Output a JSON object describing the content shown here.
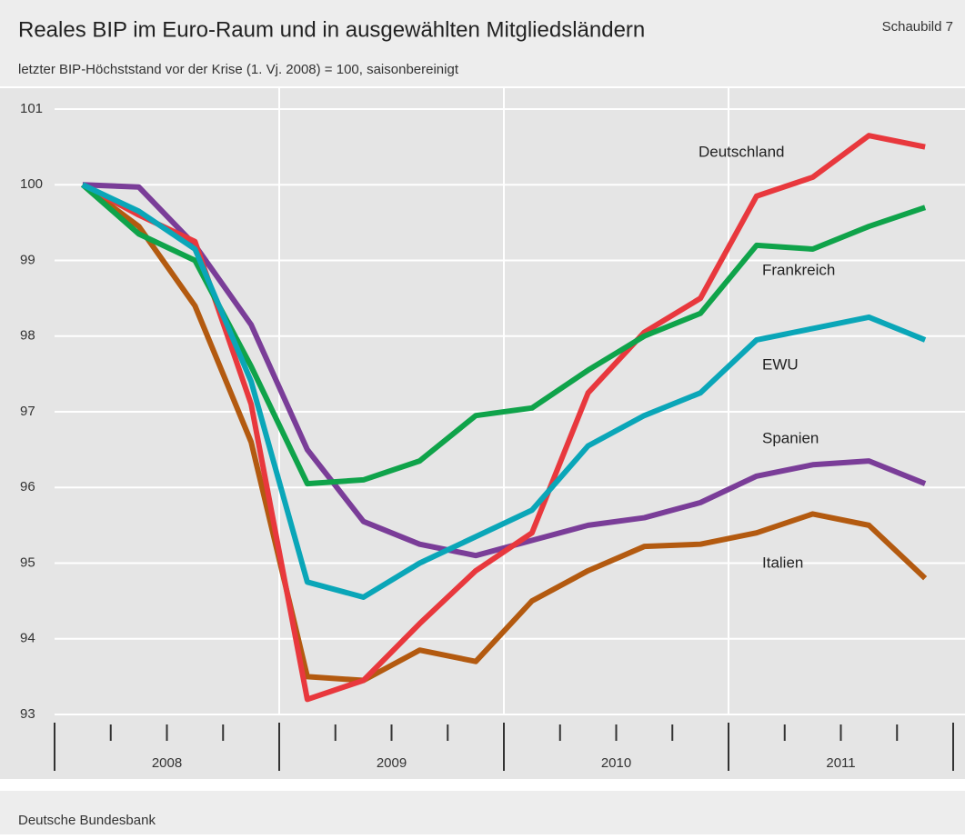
{
  "chart_data": {
    "type": "line",
    "title": "Reales BIP im Euro-Raum und in ausgewählten Mitgliedsländern",
    "figure_label": "Schaubild 7",
    "subtitle": "letzter BIP-Höchststand vor der Krise (1. Vj. 2008) = 100, saisonbereinigt",
    "source": "Deutsche Bundesbank",
    "categories": [
      null,
      null,
      null,
      null,
      null,
      null,
      null,
      null,
      null,
      null,
      null,
      null,
      null,
      null,
      null,
      null
    ],
    "years": [
      "2008",
      "2009",
      "2010",
      "2011"
    ],
    "ylim": [
      93,
      101
    ],
    "yticks": [
      93,
      94,
      95,
      96,
      97,
      98,
      99,
      100,
      101
    ],
    "grid": true,
    "series": [
      {
        "name": "Italien",
        "color": "#b35a10",
        "values": [
          100,
          99.45,
          98.4,
          96.6,
          93.5,
          93.45,
          93.85,
          93.7,
          94.5,
          94.9,
          95.22,
          95.25,
          95.4,
          95.65,
          95.5,
          94.8
        ]
      },
      {
        "name": "Spanien",
        "color": "#7a3d98",
        "values": [
          100,
          99.97,
          99.2,
          98.15,
          96.5,
          95.55,
          95.25,
          95.1,
          95.3,
          95.5,
          95.6,
          95.8,
          96.15,
          96.3,
          96.35,
          96.05
        ]
      },
      {
        "name": "Deutschland",
        "color": "#e8383d",
        "values": [
          100,
          99.6,
          99.25,
          97.1,
          93.2,
          93.45,
          94.2,
          94.9,
          95.4,
          97.25,
          98.05,
          98.5,
          99.85,
          100.1,
          100.65,
          100.5
        ]
      },
      {
        "name": "Frankreich",
        "color": "#0fa34a",
        "values": [
          100,
          99.35,
          99.0,
          97.6,
          96.05,
          96.1,
          96.35,
          96.95,
          97.05,
          97.55,
          98.0,
          98.3,
          99.2,
          99.15,
          99.45,
          99.7
        ]
      },
      {
        "name": "EWU",
        "color": "#0aa6b8",
        "values": [
          100,
          99.65,
          99.15,
          97.4,
          94.75,
          94.55,
          95.0,
          95.35,
          95.7,
          96.55,
          96.95,
          97.25,
          97.95,
          98.1,
          98.25,
          97.95
        ]
      }
    ]
  }
}
